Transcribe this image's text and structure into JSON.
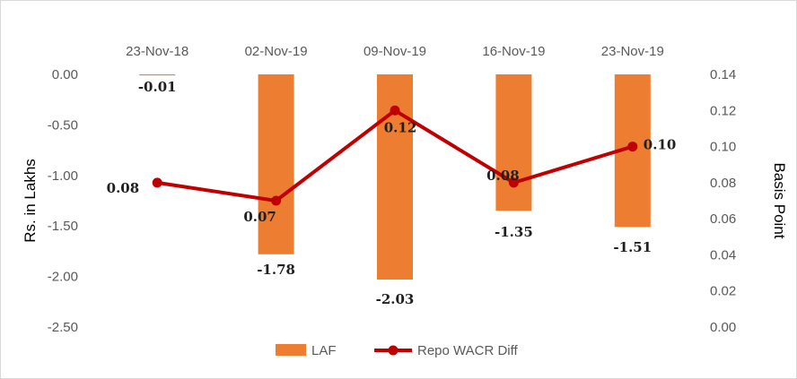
{
  "chart_data": {
    "type": "bar",
    "categories": [
      "23-Nov-18",
      "02-Nov-19",
      "09-Nov-19",
      "16-Nov-19",
      "23-Nov-19"
    ],
    "series": [
      {
        "name": "LAF",
        "type": "bar",
        "axis": "left",
        "color": "#ED7D31",
        "values": [
          -0.01,
          -1.78,
          -2.03,
          -1.35,
          -1.51
        ],
        "labels": [
          "-0.01",
          "-1.78",
          "-2.03",
          "-1.35",
          "-1.51"
        ]
      },
      {
        "name": "Repo WACR Diff",
        "type": "line",
        "axis": "right",
        "color": "#C00000",
        "values": [
          0.08,
          0.07,
          0.12,
          0.08,
          0.1
        ],
        "labels": [
          "0.08",
          "0.07",
          "0.12",
          "0.08",
          "0.10"
        ]
      }
    ],
    "ylabel": "Rs. in Lakhs",
    "y2label": "Basis Point",
    "ylim": [
      -2.5,
      0.0
    ],
    "y2lim": [
      0.0,
      0.14
    ],
    "yticks": [
      "0.00",
      "-0.50",
      "-1.00",
      "-1.50",
      "-2.00",
      "-2.50"
    ],
    "y2ticks": [
      "0.14",
      "0.12",
      "0.10",
      "0.08",
      "0.06",
      "0.04",
      "0.02",
      "0.00"
    ],
    "x_axis_position": "top",
    "grid": false,
    "legend": "bottom"
  }
}
